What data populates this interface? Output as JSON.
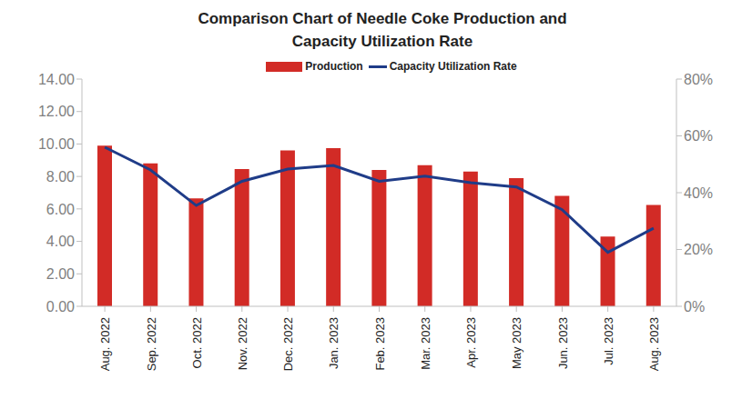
{
  "chart_data": {
    "type": "combo",
    "title": "Comparison Chart of Needle Coke Production and Capacity Utilization Rate",
    "categories": [
      "Aug. 2022",
      "Sep. 2022",
      "Oct. 2022",
      "Nov. 2022",
      "Dec. 2022",
      "Jan. 2023",
      "Feb. 2023",
      "Mar. 2023",
      "Apr. 2023",
      "May 2023",
      "Jun. 2023",
      "Jul. 2023",
      "Aug. 2023"
    ],
    "series": [
      {
        "name": "Production",
        "type": "bar",
        "color": "#d22b26",
        "values": [
          9.9,
          8.8,
          6.65,
          8.45,
          9.6,
          9.75,
          8.4,
          8.7,
          8.3,
          7.9,
          6.8,
          4.3,
          6.25
        ]
      },
      {
        "name": "Capacity Utilization Rate",
        "type": "line",
        "axis": "y2",
        "color": "#1f3c88",
        "marker": "none",
        "values": [
          56,
          48,
          35.5,
          44,
          48.3,
          49.6,
          44,
          45.8,
          43.5,
          42,
          34,
          19,
          27.5
        ]
      }
    ],
    "ylim": [
      0,
      14
    ],
    "yticks": [
      {
        "value": 0,
        "label": "0.00"
      },
      {
        "value": 2,
        "label": "2.00"
      },
      {
        "value": 4,
        "label": "4.00"
      },
      {
        "value": 6,
        "label": "6.00"
      },
      {
        "value": 8,
        "label": "8.00"
      },
      {
        "value": 10,
        "label": "10.00"
      },
      {
        "value": 12,
        "label": "12.00"
      },
      {
        "value": 14,
        "label": "14.00"
      }
    ],
    "y2lim": [
      0,
      80
    ],
    "y2ticks": [
      {
        "value": 0,
        "label": "0%"
      },
      {
        "value": 20,
        "label": "20%"
      },
      {
        "value": 40,
        "label": "40%"
      },
      {
        "value": 60,
        "label": "60%"
      },
      {
        "value": 80,
        "label": "80%"
      }
    ],
    "grid": false
  }
}
